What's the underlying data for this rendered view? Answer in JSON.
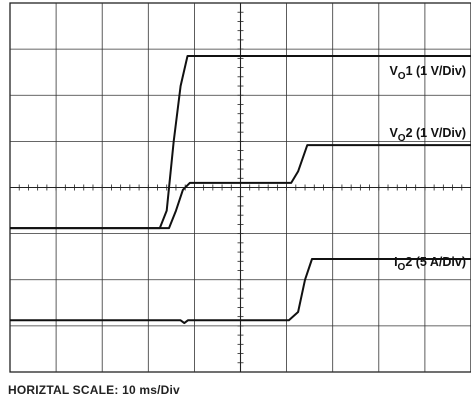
{
  "footer": {
    "horizontal_scale": "HORIZTAL SCALE: 10 ms/Div"
  },
  "chart_data": {
    "type": "line",
    "x_unit": "div",
    "y_unit": "div",
    "xlim": [
      0,
      10
    ],
    "ylim": [
      0,
      8
    ],
    "grid": true,
    "grid_divisions": {
      "x": 10,
      "y": 8
    },
    "series": [
      {
        "name": "VO1 (1 V/Div)",
        "label_main": "V",
        "label_sub": "O",
        "label_rest": "1 (1 V/Div)",
        "points": [
          [
            0,
            3.12
          ],
          [
            3.25,
            3.12
          ],
          [
            3.4,
            3.5
          ],
          [
            3.55,
            5.0
          ],
          [
            3.7,
            6.2
          ],
          [
            3.85,
            6.85
          ],
          [
            10,
            6.85
          ]
        ]
      },
      {
        "name": "VO2 (1 V/Div)",
        "label_main": "V",
        "label_sub": "O",
        "label_rest": "2 (1 V/Div)",
        "points": [
          [
            0,
            3.12
          ],
          [
            3.45,
            3.12
          ],
          [
            3.6,
            3.5
          ],
          [
            3.75,
            3.95
          ],
          [
            3.9,
            4.1
          ],
          [
            6.1,
            4.1
          ],
          [
            6.25,
            4.35
          ],
          [
            6.45,
            4.92
          ],
          [
            10,
            4.92
          ]
        ]
      },
      {
        "name": "IO2 (5 A/Div)",
        "label_main": "I",
        "label_sub": "O",
        "label_rest": "2 (5 A/Div)",
        "points": [
          [
            0,
            1.12
          ],
          [
            3.7,
            1.12
          ],
          [
            3.78,
            1.06
          ],
          [
            3.86,
            1.12
          ],
          [
            6.05,
            1.12
          ],
          [
            6.25,
            1.3
          ],
          [
            6.4,
            2.0
          ],
          [
            6.55,
            2.45
          ],
          [
            10,
            2.45
          ]
        ]
      }
    ]
  }
}
